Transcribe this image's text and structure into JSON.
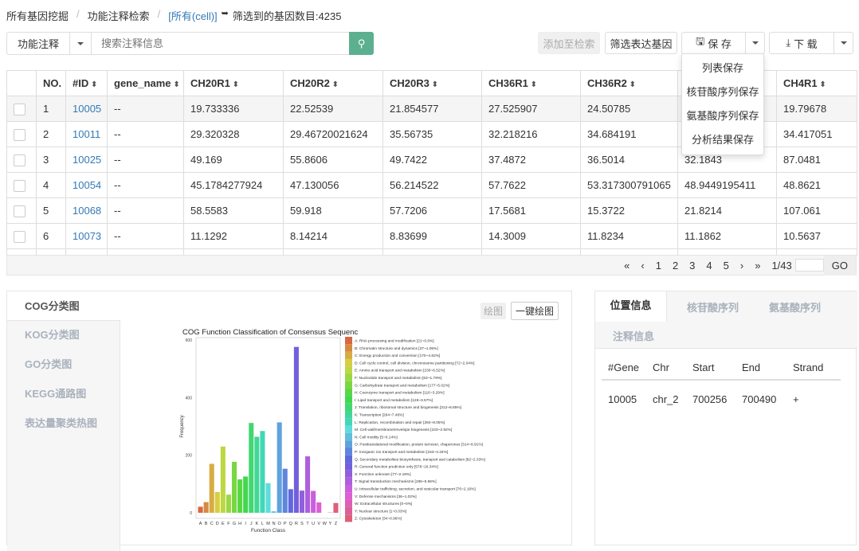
{
  "breadcrumb": {
    "items": [
      "所有基因挖掘",
      "功能注释检索"
    ],
    "current": "[所有(cell)]",
    "count_text": "筛选到的基因数目:4235"
  },
  "search": {
    "category": "功能注释",
    "placeholder": "搜索注释信息"
  },
  "toolbar": {
    "add": "添加至检索",
    "filter": "筛选表达基因",
    "save": "保 存",
    "download": "下 载"
  },
  "save_menu": [
    "列表保存",
    "核苷酸序列保存",
    "氨基酸序列保存",
    "分析结果保存"
  ],
  "table": {
    "headers": [
      "NO.",
      "#ID",
      "gene_name",
      "CH20R1",
      "CH20R2",
      "CH20R3",
      "CH36R1",
      "CH36R2",
      "",
      "CH4R1"
    ],
    "rows": [
      [
        "1",
        "10005",
        "--",
        "19.733336",
        "22.52539",
        "21.854577",
        "27.525907",
        "24.50785",
        "",
        "19.79678"
      ],
      [
        "2",
        "10011",
        "--",
        "29.320328",
        "29.46720021624",
        "35.56735",
        "32.218216",
        "34.684191",
        "",
        "34.417051"
      ],
      [
        "3",
        "10025",
        "--",
        "49.169",
        "55.8606",
        "49.7422",
        "37.4872",
        "36.5014",
        "32.1843",
        "87.0481"
      ],
      [
        "4",
        "10054",
        "--",
        "45.1784277924",
        "47.130056",
        "56.214522",
        "57.7622",
        "53.317300791065",
        "48.9449195411",
        "48.8621"
      ],
      [
        "5",
        "10068",
        "--",
        "58.5583",
        "59.918",
        "57.7206",
        "17.5681",
        "15.3722",
        "21.8214",
        "107.061"
      ],
      [
        "6",
        "10073",
        "--",
        "11.1292",
        "8.14214",
        "8.83699",
        "14.3009",
        "11.8234",
        "11.1862",
        "10.5637"
      ]
    ]
  },
  "pagination": {
    "first": "«",
    "prev": "‹",
    "pages": [
      "1",
      "2",
      "3",
      "4",
      "5"
    ],
    "next": "›",
    "last": "»",
    "info": "1/43",
    "go": "GO"
  },
  "left_tabs": [
    "COG分类图",
    "KOG分类图",
    "GO分类图",
    "KEGG通路图",
    "表达量聚类热图"
  ],
  "plot_buttons": {
    "draw": "绘图",
    "one_click": "一键绘图"
  },
  "right_tabs": [
    "位置信息",
    "核苷酸序列",
    "氨基酸序列",
    "注释信息"
  ],
  "location": {
    "headers": [
      "#Gene",
      "Chr",
      "Start",
      "End",
      "Strand"
    ],
    "row": [
      "10005",
      "chr_2",
      "700256",
      "700490",
      "+"
    ]
  },
  "chart_data": {
    "type": "bar",
    "title": "COG Function Classification of Consensus Sequenc",
    "xlabel": "Function Class",
    "ylabel": "Frequency",
    "ylim": [
      0,
      600
    ],
    "yticks": [
      0,
      200,
      400,
      600
    ],
    "categories": [
      "A",
      "B",
      "C",
      "D",
      "E",
      "F",
      "G",
      "H",
      "I",
      "J",
      "K",
      "L",
      "M",
      "N",
      "O",
      "P",
      "Q",
      "R",
      "S",
      "T",
      "U",
      "V",
      "W",
      "Y",
      "Z"
    ],
    "values": [
      21,
      37,
      170,
      72,
      230,
      63,
      177,
      116,
      126,
      312,
      264,
      284,
      103,
      5,
      314,
      153,
      82,
      576,
      77,
      196,
      76,
      36,
      0,
      1,
      34
    ],
    "legend": [
      "A: RNA processing and modification [21~0.6%]",
      "B: Chromatin structure and dynamics [37~1.05%]",
      "C: Energy production and conversion [170~4.82%]",
      "D: Cell cycle control, cell division, chromosome partitioning [72~2.04%]",
      "E: Amino acid transport and metabolism [230~6.52%]",
      "F: Nucleotide transport and metabolism [63~1.79%]",
      "G: Carbohydrate transport and metabolism [177~5.02%]",
      "H: Coenzyme transport and metabolism [116~3.29%]",
      "I: Lipid transport and metabolism [126~3.57%]",
      "J: Translation, ribosomal structure and biogenesis [312~8.85%]",
      "K: Transcription [264~7.48%]",
      "L: Replication, recombination and repair [284~8.05%]",
      "M: Cell wall/membrane/envelope biogenesis [103~2.92%]",
      "N: Cell motility [5~0.14%]",
      "O: Posttranslational modification, protein turnover, chaperones [314~8.91%]",
      "P: Inorganic ion transport and metabolism [153~4.34%]",
      "Q: Secondary metabolites biosynthesis, transport and catabolism [82~2.33%]",
      "R: General function prediction only [576~16.34%]",
      "S: Function unknown [77~2.18%]",
      "T: Signal transduction mechanisms [196~5.56%]",
      "U: Intracellular trafficking, secretion, and vesicular transport [76~2.16%]",
      "V: Defense mechanisms [36~1.02%]",
      "W: Extracellular structures [0~0%]",
      "Y: Nuclear structure [1~0.03%]",
      "Z: Cytoskeleton [34~0.96%]"
    ]
  },
  "colors": {
    "accent": "#5cb08f",
    "link": "#337ab7"
  }
}
